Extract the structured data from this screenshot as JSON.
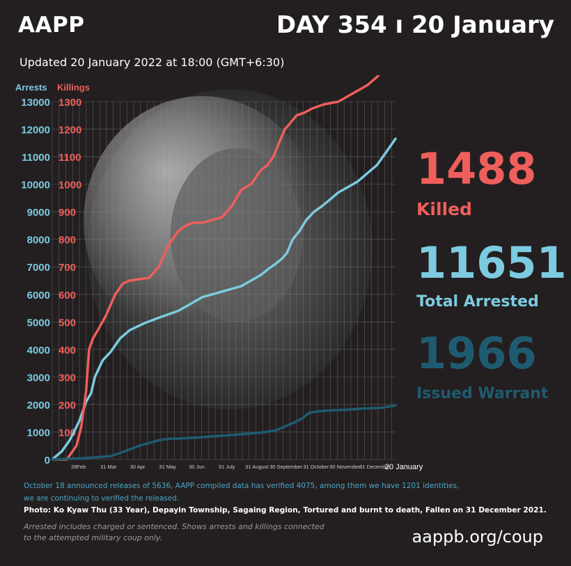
{
  "header": {
    "brand": "AAPP",
    "day_label": "DAY 354 ı 20 January",
    "updated": "Updated  20 January 2022 at 18:00 (GMT+6:30)"
  },
  "stats": {
    "killed_value": "1488",
    "killed_label": "Killed",
    "arrested_value": "11651",
    "arrested_label": "Total Arrested",
    "warrant_value": "1966",
    "warrant_label": "Issued Warrant"
  },
  "footer": {
    "note_line1": "October 18 announced releases of 5636, AAPP compiled data has verified 4075, among them we have 1201 identities,",
    "note_line2": "we are continuing to verified the released.",
    "photo_caption": "Photo: Ko Kyaw Thu (33 Year), Depayin Township, Sagaing Region, Tortured and burnt to death, Fallen on 31 December 2021.",
    "disclaimer_line1": "Arrested includes charged or sentenced. Shows arrests and killings connected",
    "disclaimer_line2": "to the attempted military coup only.",
    "url": "aappb.org/coup"
  },
  "colors": {
    "killings": "#ee5f5b",
    "arrests": "#7ccbe0",
    "warrants": "#1f5b70",
    "background": "#231f20"
  },
  "chart_data": {
    "type": "line",
    "y_axis_left_label": "Arrests",
    "y_axis_right_label": "Killings",
    "arrests_ticks": [
      0,
      1000,
      2000,
      3000,
      4000,
      5000,
      6000,
      7000,
      8000,
      9000,
      10000,
      11000,
      12000,
      13000
    ],
    "killings_ticks": [
      100,
      200,
      300,
      400,
      500,
      600,
      700,
      800,
      900,
      1000,
      1100,
      1200,
      1300
    ],
    "ylim_arrests": [
      0,
      13000
    ],
    "ylim_killings": [
      0,
      1300
    ],
    "x_ticks": [
      {
        "label": "28Feb",
        "day": 27
      },
      {
        "label": "31 Mar",
        "day": 58
      },
      {
        "label": "30 Apr",
        "day": 88
      },
      {
        "label": "31 May",
        "day": 119
      },
      {
        "label": "30 Jun",
        "day": 149
      },
      {
        "label": "31 July",
        "day": 180
      },
      {
        "label": "31 August",
        "day": 211
      },
      {
        "label": "30 September",
        "day": 241
      },
      {
        "label": "31 October",
        "day": 272
      },
      {
        "label": "30 November",
        "day": 302
      },
      {
        "label": "31 December",
        "day": 333
      },
      {
        "label": "20 January",
        "day": 354
      }
    ],
    "grid": true,
    "series": [
      {
        "key": "arrests",
        "axis": "arrests",
        "color": "#7ccbe0",
        "days": [
          0,
          10,
          18,
          28,
          35,
          40,
          44,
          52,
          60,
          70,
          80,
          95,
          110,
          130,
          145,
          155,
          165,
          175,
          185,
          195,
          205,
          215,
          222,
          230,
          237,
          242,
          248,
          255,
          262,
          270,
          278,
          285,
          295,
          305,
          315,
          325,
          335,
          345,
          354
        ],
        "values": [
          0,
          300,
          700,
          1400,
          2100,
          2400,
          3000,
          3600,
          3900,
          4400,
          4700,
          4950,
          5150,
          5400,
          5700,
          5900,
          6000,
          6100,
          6200,
          6300,
          6500,
          6700,
          6900,
          7100,
          7300,
          7500,
          8000,
          8300,
          8700,
          9000,
          9200,
          9400,
          9700,
          9900,
          10100,
          10400,
          10700,
          11200,
          11651
        ]
      },
      {
        "key": "killings",
        "axis": "killings",
        "color": "#ee5f5b",
        "days": [
          0,
          15,
          25,
          30,
          35,
          38,
          42,
          47,
          55,
          65,
          73,
          80,
          90,
          100,
          110,
          120,
          130,
          138,
          145,
          155,
          165,
          175,
          185,
          195,
          205,
          215,
          222,
          228,
          235,
          240,
          245,
          252,
          260,
          268,
          280,
          295,
          305,
          315,
          325,
          335,
          345,
          354
        ],
        "values": [
          0,
          0,
          50,
          120,
          250,
          400,
          440,
          470,
          520,
          600,
          640,
          650,
          655,
          660,
          700,
          780,
          830,
          850,
          860,
          860,
          870,
          880,
          920,
          980,
          1000,
          1050,
          1070,
          1100,
          1160,
          1200,
          1220,
          1250,
          1260,
          1275,
          1290,
          1300,
          1320,
          1340,
          1360,
          1390,
          1430,
          1488
        ]
      },
      {
        "key": "warrants",
        "axis": "arrests",
        "color": "#1f5b70",
        "days": [
          0,
          30,
          60,
          75,
          90,
          100,
          110,
          120,
          130,
          150,
          170,
          190,
          210,
          220,
          230,
          240,
          250,
          258,
          265,
          275,
          285,
          300,
          320,
          340,
          354
        ],
        "values": [
          0,
          40,
          120,
          300,
          500,
          600,
          700,
          750,
          760,
          800,
          850,
          900,
          960,
          1000,
          1050,
          1200,
          1350,
          1500,
          1700,
          1750,
          1780,
          1800,
          1850,
          1880,
          1966
        ]
      }
    ]
  }
}
